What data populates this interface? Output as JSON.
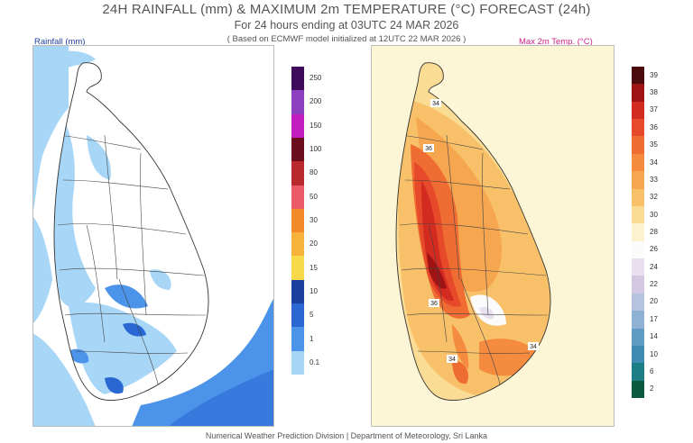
{
  "header": {
    "title": "24H RAINFALL (mm) & MAXIMUM 2m TEMPERATURE (°C) FORECAST (24h)",
    "subtitle": "For 24 hours ending at 03UTC 24 MAR 2026",
    "note": "( Based on ECMWF model initialized at 12UTC 22 MAR 2026 )"
  },
  "rain_panel": {
    "label": "Rainfall (mm)",
    "legend": [
      {
        "value": "250",
        "color": "#3d0a5c"
      },
      {
        "value": "200",
        "color": "#8e3fbf"
      },
      {
        "value": "150",
        "color": "#c31dc0"
      },
      {
        "value": "100",
        "color": "#6a0d1f"
      },
      {
        "value": "80",
        "color": "#b8282d"
      },
      {
        "value": "50",
        "color": "#ec5a6a"
      },
      {
        "value": "30",
        "color": "#f28a2a"
      },
      {
        "value": "20",
        "color": "#f6b23b"
      },
      {
        "value": "15",
        "color": "#f7d94a"
      },
      {
        "value": "10",
        "color": "#1a3f9c"
      },
      {
        "value": "5",
        "color": "#2a67d2"
      },
      {
        "value": "1",
        "color": "#4c93ea"
      },
      {
        "value": "0.1",
        "color": "#a8d6f6"
      }
    ]
  },
  "temp_panel": {
    "label": "Max 2m Temp. (°C)",
    "contour_labels": [
      "34",
      "36",
      "36",
      "34",
      "34"
    ],
    "legend": [
      {
        "value": "39",
        "color": "#4a0a0e"
      },
      {
        "value": "38",
        "color": "#9e1414"
      },
      {
        "value": "37",
        "color": "#d42b20"
      },
      {
        "value": "36",
        "color": "#e64a2a"
      },
      {
        "value": "35",
        "color": "#ef6d32"
      },
      {
        "value": "34",
        "color": "#f48b3e"
      },
      {
        "value": "33",
        "color": "#f6a64e"
      },
      {
        "value": "32",
        "color": "#f8c169"
      },
      {
        "value": "30",
        "color": "#fbdc95"
      },
      {
        "value": "28",
        "color": "#fdf2cf"
      },
      {
        "value": "26",
        "color": "#fbfbfb"
      },
      {
        "value": "24",
        "color": "#e9e0ef"
      },
      {
        "value": "22",
        "color": "#d2c8e2"
      },
      {
        "value": "20",
        "color": "#b6c3de"
      },
      {
        "value": "17",
        "color": "#8fb2d4"
      },
      {
        "value": "14",
        "color": "#5f9cc4"
      },
      {
        "value": "10",
        "color": "#3f8bb2"
      },
      {
        "value": "6",
        "color": "#1d7e86"
      },
      {
        "value": "2",
        "color": "#0b5a3f"
      }
    ]
  },
  "footer": {
    "text": "Numerical Weather Prediction Division | Department of Meteorology, Sri Lanka"
  }
}
